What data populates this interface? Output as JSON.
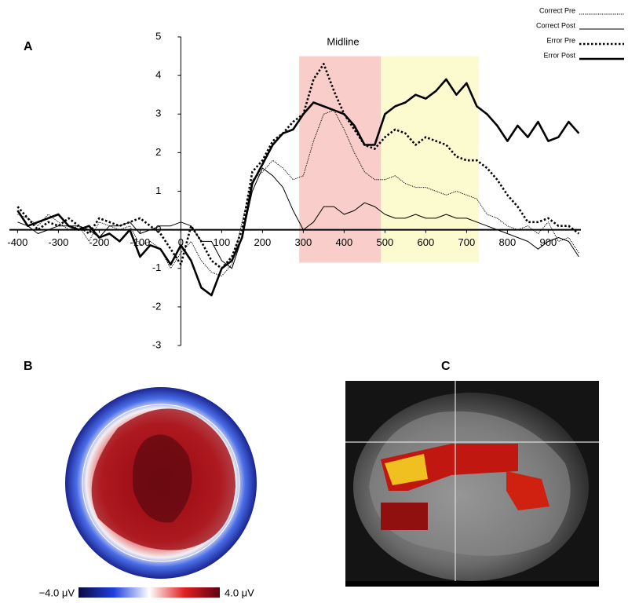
{
  "chart_data": {
    "type": "line",
    "title": "Midline",
    "x": [
      -400,
      -375,
      -350,
      -325,
      -300,
      -275,
      -250,
      -225,
      -200,
      -175,
      -150,
      -125,
      -100,
      -75,
      -50,
      -25,
      0,
      25,
      50,
      75,
      100,
      125,
      150,
      175,
      200,
      225,
      250,
      275,
      300,
      325,
      350,
      375,
      400,
      425,
      450,
      475,
      500,
      525,
      550,
      575,
      600,
      625,
      650,
      675,
      700,
      725,
      750,
      775,
      800,
      825,
      850,
      875,
      900,
      925,
      950,
      975
    ],
    "series": [
      {
        "name": "Correct Pre",
        "color": "#000000",
        "dash": "dotted",
        "weight": "thin",
        "values": [
          0.4,
          0.3,
          0.1,
          0.4,
          0.2,
          0,
          0.1,
          -0.3,
          0.2,
          0.1,
          0,
          0.1,
          -0.4,
          -0.3,
          -0.5,
          -1.0,
          -0.6,
          -0.3,
          -0.8,
          -1.1,
          -1.2,
          -0.9,
          0.2,
          1.3,
          1.5,
          1.8,
          1.6,
          1.3,
          1.4,
          2.3,
          3.0,
          3.1,
          2.6,
          2.0,
          1.5,
          1.3,
          1.3,
          1.4,
          1.2,
          1.1,
          1.1,
          1.0,
          0.9,
          1.0,
          0.9,
          0.8,
          0.4,
          0.3,
          0.1,
          0,
          0.1,
          -0.1,
          0.2,
          -0.3,
          -0.2,
          -0.6
        ]
      },
      {
        "name": "Correct Post",
        "color": "#000000",
        "dash": "solid",
        "weight": "thin",
        "values": [
          0.2,
          0.1,
          -0.1,
          0,
          0.1,
          0.1,
          0.1,
          0,
          -0.2,
          0.1,
          0.1,
          0.2,
          -0.1,
          0,
          0.1,
          0.1,
          0.2,
          0.1,
          -0.3,
          -0.3,
          -0.8,
          -1.0,
          -0.2,
          1.0,
          1.6,
          1.4,
          1.1,
          0.5,
          0,
          0.2,
          0.6,
          0.6,
          0.4,
          0.5,
          0.7,
          0.6,
          0.4,
          0.3,
          0.3,
          0.4,
          0.3,
          0.3,
          0.4,
          0.3,
          0.3,
          0.2,
          0.1,
          0,
          -0.1,
          -0.2,
          -0.3,
          -0.5,
          -0.3,
          -0.2,
          -0.3,
          -0.7
        ]
      },
      {
        "name": "Error Pre",
        "color": "#000000",
        "dash": "dotted",
        "weight": "thick",
        "values": [
          0.6,
          0.3,
          0,
          0.2,
          0.1,
          0.3,
          0.1,
          -0.1,
          0.3,
          0.2,
          0.1,
          0.2,
          0.3,
          0.1,
          -0.1,
          -0.5,
          -0.9,
          0.1,
          -0.3,
          -0.8,
          -1.0,
          -0.7,
          0,
          1.5,
          1.8,
          2.3,
          2.5,
          2.8,
          3.0,
          3.9,
          4.3,
          3.6,
          3.0,
          2.6,
          2.2,
          2.1,
          2.4,
          2.6,
          2.5,
          2.2,
          2.4,
          2.3,
          2.2,
          1.9,
          1.8,
          1.8,
          1.6,
          1.3,
          0.9,
          0.6,
          0.2,
          0.2,
          0.3,
          0.1,
          0.1,
          -0.1
        ]
      },
      {
        "name": "Error Post",
        "color": "#000000",
        "dash": "solid",
        "weight": "thick",
        "values": [
          0.5,
          0.1,
          0.2,
          0.3,
          0.4,
          0.1,
          0,
          0.1,
          -0.2,
          -0.1,
          -0.3,
          0,
          -0.7,
          -0.4,
          -0.5,
          -0.9,
          -0.4,
          -0.8,
          -1.5,
          -1.7,
          -1.0,
          -0.8,
          -0.2,
          1.2,
          1.7,
          2.2,
          2.5,
          2.6,
          3.0,
          3.3,
          3.2,
          3.1,
          3.0,
          2.7,
          2.2,
          2.2,
          3.0,
          3.2,
          3.3,
          3.5,
          3.4,
          3.6,
          3.9,
          3.5,
          3.8,
          3.2,
          3.0,
          2.7,
          2.3,
          2.7,
          2.4,
          2.8,
          2.3,
          2.4,
          2.8,
          2.5
        ]
      }
    ],
    "shaded_regions": [
      {
        "xlim": [
          290,
          490
        ],
        "ylim": [
          -0.85,
          4.5
        ],
        "color": "#f8cdca"
      },
      {
        "xlim": [
          490,
          730
        ],
        "ylim": [
          -0.85,
          4.5
        ],
        "color": "#fbfbcf"
      }
    ],
    "xlim": [
      -420,
      980
    ],
    "ylim": [
      -3,
      5
    ],
    "xticks": [
      -400,
      -300,
      -200,
      -100,
      0,
      100,
      200,
      300,
      400,
      500,
      600,
      700,
      800,
      900
    ],
    "yticks": [
      -3,
      -2,
      -1,
      0,
      1,
      2,
      3,
      4,
      5
    ],
    "legend": "top-right"
  },
  "figure": {
    "panel_labels": [
      "A",
      "B",
      "C"
    ],
    "colorbar": {
      "min_label": "−4.0 μV",
      "max_label": "4.0 μV"
    }
  }
}
